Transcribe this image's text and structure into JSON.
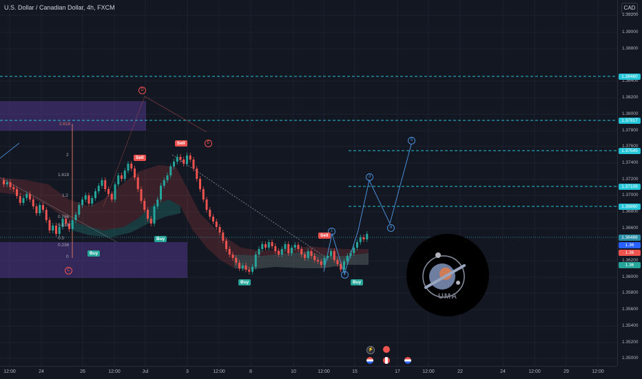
{
  "header": {
    "symbol_title": "U.S. Dollar / Canadian Dollar, 4h, FXCM",
    "currency": "CAD"
  },
  "price_axis": {
    "ticks": [
      "1.39200",
      "1.39000",
      "1.38800",
      "1.38400",
      "1.38200",
      "1.38000",
      "1.37800",
      "1.37600",
      "1.37400",
      "1.37200",
      "1.37000",
      "1.36800",
      "1.36600",
      "1.36200",
      "1.36000",
      "1.35800",
      "1.35600",
      "1.35400",
      "1.35200",
      "1.35000"
    ],
    "tags": [
      {
        "label": "1.38460",
        "color": "#26c6da"
      },
      {
        "label": "1.37917",
        "color": "#26c6da"
      },
      {
        "label": "1.37545",
        "color": "#26c6da"
      },
      {
        "label": "1.37109",
        "color": "#26c6da"
      },
      {
        "label": "1.36860",
        "color": "#26c6da"
      },
      {
        "label": "1.36486",
        "color": "#2a8fa6"
      },
      {
        "label": "1.36",
        "color": "#2962ff"
      },
      {
        "label": "1.36",
        "color": "#ef5350"
      },
      {
        "label": "1.36",
        "color": "#26a69a"
      }
    ]
  },
  "time_axis": {
    "ticks": [
      "12:00",
      "24",
      "26",
      "12:00",
      "Jul",
      "3",
      "12:00",
      "8",
      "10",
      "12:00",
      "15",
      "17",
      "12:00",
      "22",
      "24",
      "12:00",
      "29",
      "12:00"
    ]
  },
  "fibonacci": {
    "levels": [
      "2.618",
      "2",
      "1.618",
      "1.2",
      "0.786",
      "0.618",
      "0.5",
      "0.236",
      "0"
    ]
  },
  "waves": {
    "labels": [
      "D",
      "E",
      "C",
      "1",
      "2",
      "3",
      "4",
      "5"
    ]
  },
  "signals": {
    "buy_label": "Buy",
    "sell_label": "Sell"
  },
  "logo": {
    "text": "UMA"
  },
  "colors": {
    "background": "#131722",
    "bull": "#26a69a",
    "bear": "#ef5350",
    "zone": "#5b3f9e",
    "cyan_line": "#26c6da",
    "wave_blue": "#4a90d9"
  }
}
